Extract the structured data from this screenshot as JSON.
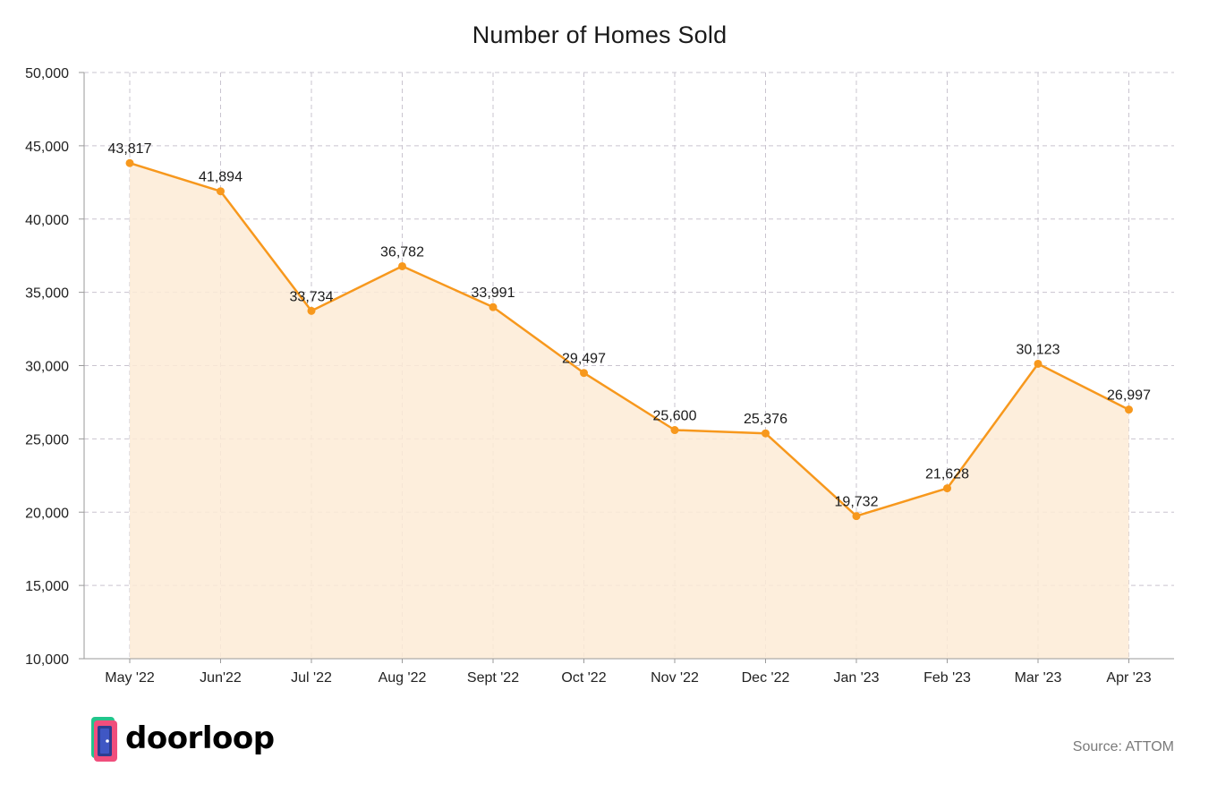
{
  "chart_data": {
    "type": "area",
    "title": "Number of Homes Sold",
    "categories": [
      "May '22",
      "Jun'22",
      "Jul '22",
      "Aug '22",
      "Sept '22",
      "Oct '22",
      "Nov '22",
      "Dec '22",
      "Jan '23",
      "Feb '23",
      "Mar '23",
      "Apr '23"
    ],
    "values": [
      43817,
      41894,
      33734,
      36782,
      33991,
      29497,
      25600,
      25376,
      19732,
      21628,
      30123,
      26997
    ],
    "data_labels": [
      "43,817",
      "41,894",
      "33,734",
      "36,782",
      "33,991",
      "29,497",
      "25,600",
      "25,376",
      "19,732",
      "21,628",
      "30,123",
      "26,997"
    ],
    "ylim": [
      10000,
      50000
    ],
    "yticks": [
      10000,
      15000,
      20000,
      25000,
      30000,
      35000,
      40000,
      45000,
      50000
    ],
    "ytick_labels": [
      "10,000",
      "15,000",
      "20,000",
      "25,000",
      "30,000",
      "35,000",
      "40,000",
      "45,000",
      "50,000"
    ],
    "grid": true,
    "line_color": "#f7981d",
    "fill_color": "#fdebd6",
    "grid_color": "#c9c4cf"
  },
  "logo": {
    "text": "doorloop",
    "color": "#2c3e8f"
  },
  "source": "Source: ATTOM"
}
